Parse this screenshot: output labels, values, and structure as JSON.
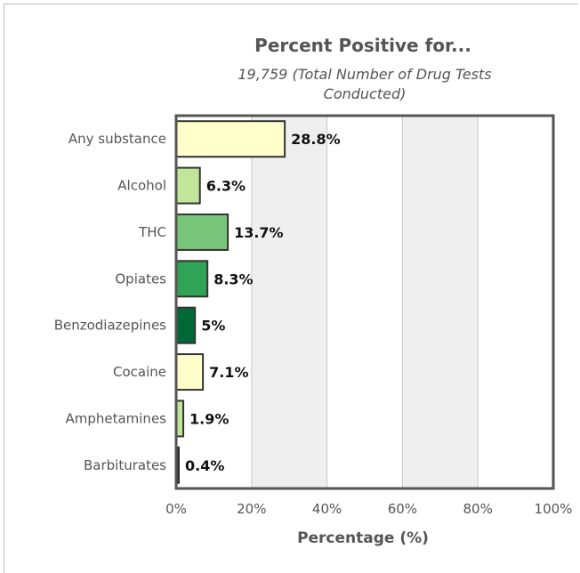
{
  "chart_data": {
    "type": "bar",
    "orientation": "horizontal",
    "title": "Percent Positive for...",
    "subtitle_lines": [
      "19,759 (Total Number of Drug Tests",
      "Conducted)"
    ],
    "xlabel": "Percentage (%)",
    "xlim": [
      0,
      100
    ],
    "x_ticks": [
      "0%",
      "20%",
      "40%",
      "60%",
      "80%",
      "100%"
    ],
    "x_tick_values": [
      0,
      20,
      40,
      60,
      80,
      100
    ],
    "grid": "alternating-bands",
    "categories": [
      "Any substance",
      "Alcohol",
      "THC",
      "Opiates",
      "Benzodiazepines",
      "Cocaine",
      "Amphetamines",
      "Barbiturates"
    ],
    "values": [
      28.8,
      6.3,
      13.7,
      8.3,
      5,
      7.1,
      1.9,
      0.4
    ],
    "value_labels": [
      "28.8%",
      "6.3%",
      "13.7%",
      "8.3%",
      "5%",
      "7.1%",
      "1.9%",
      "0.4%"
    ],
    "colors": [
      "#ffffcc",
      "#c2e699",
      "#78c679",
      "#31a354",
      "#006837",
      "#ffffcc",
      "#c2e699",
      "#333333"
    ]
  }
}
